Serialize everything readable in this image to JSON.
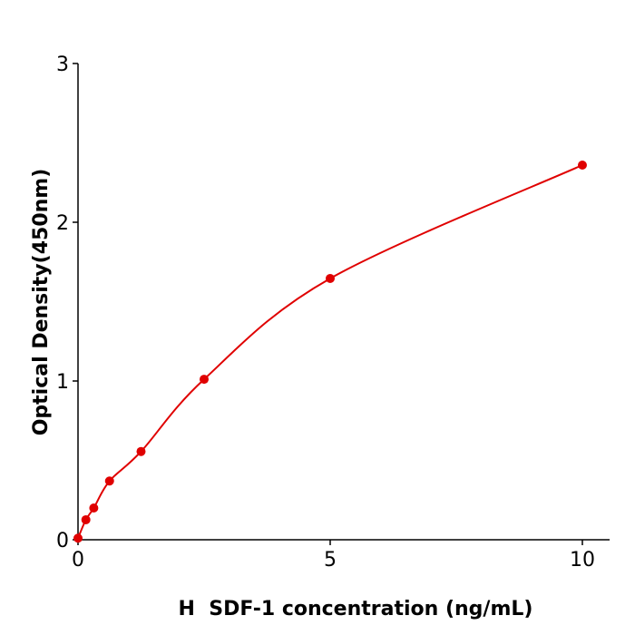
{
  "chart_data": {
    "type": "scatter",
    "title": "",
    "xlabel": "H  SDF-1 concentration (ng/mL)",
    "ylabel": "Optical Density(450nm)",
    "xlim": [
      0,
      10.54
    ],
    "ylim": [
      0,
      3
    ],
    "xticks": [
      0,
      5,
      10
    ],
    "yticks": [
      0,
      1,
      2,
      3
    ],
    "grid": false,
    "color": "#e00000",
    "series": [
      {
        "x": [
          0,
          0.156,
          0.3125,
          0.625,
          1.25,
          2.5,
          5,
          10
        ],
        "y": [
          0.01,
          0.126,
          0.2,
          0.37,
          0.556,
          1.011,
          1.646,
          2.36
        ],
        "fit_curve": true
      }
    ]
  }
}
